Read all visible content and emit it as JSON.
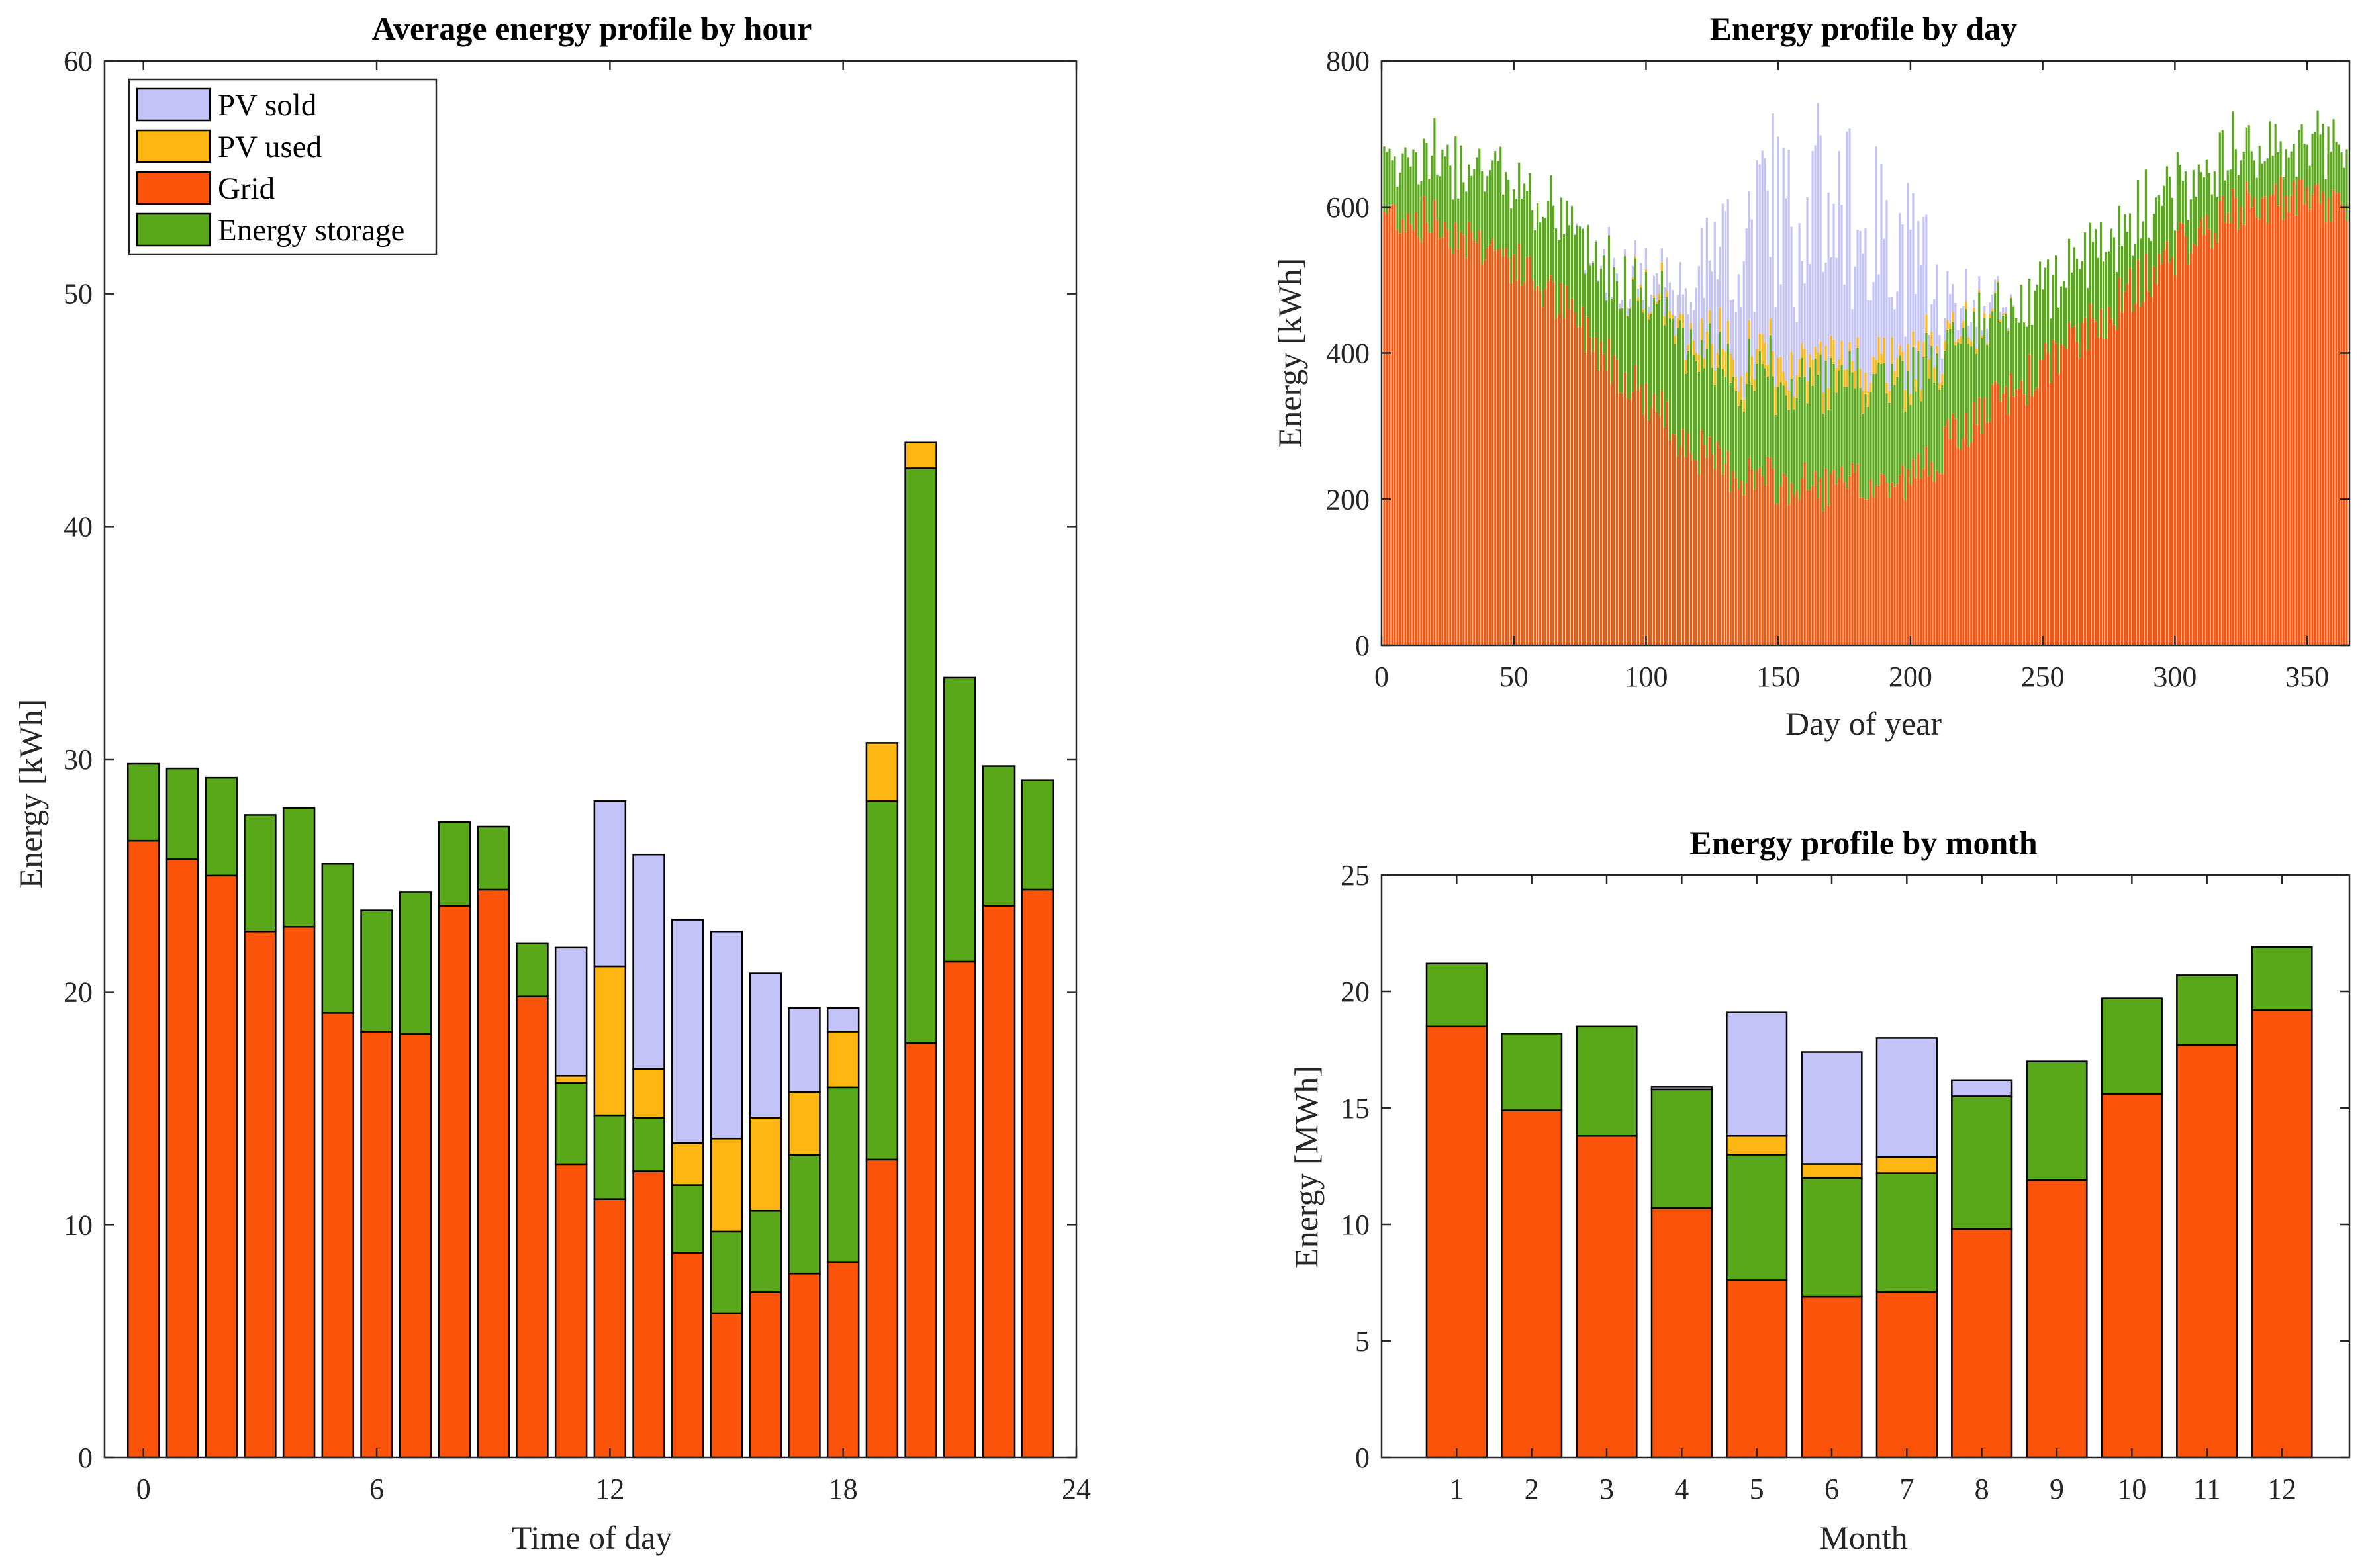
{
  "colors": {
    "pv_sold": "#C4C3F7",
    "pv_used": "#FDB612",
    "grid": "#FC530A",
    "storage": "#59A819"
  },
  "legend": [
    "PV sold",
    "PV used",
    "Grid",
    "Energy storage"
  ],
  "chart_data": [
    {
      "type": "bar",
      "stacked": true,
      "title": "Average energy profile by hour",
      "xlabel": "Time of day",
      "ylabel": "Energy [kWh]",
      "xlim": [
        -1,
        24
      ],
      "ylim": [
        0,
        60
      ],
      "xticks": [
        "0",
        "6",
        "12",
        "18",
        "24"
      ],
      "yticks": [
        "0",
        "10",
        "20",
        "30",
        "40",
        "50",
        "60"
      ],
      "legend_position": "top-left",
      "x": [
        0,
        1,
        2,
        3,
        4,
        5,
        6,
        7,
        8,
        9,
        10,
        11,
        12,
        13,
        14,
        15,
        16,
        17,
        18,
        19,
        20,
        21,
        22,
        23
      ],
      "series": [
        {
          "name": "Grid",
          "values": [
            26.5,
            25.7,
            25.0,
            22.6,
            22.8,
            19.1,
            18.3,
            18.2,
            23.7,
            24.4,
            19.8,
            12.6,
            11.1,
            12.3,
            8.8,
            6.2,
            7.1,
            7.9,
            8.4,
            12.8,
            17.8,
            21.3,
            23.7,
            24.4
          ]
        },
        {
          "name": "Energy storage",
          "values": [
            3.3,
            3.9,
            4.2,
            5.0,
            5.1,
            6.4,
            5.2,
            6.1,
            3.6,
            2.7,
            2.3,
            3.5,
            3.6,
            2.3,
            2.9,
            3.5,
            3.5,
            5.1,
            7.5,
            15.4,
            24.7,
            12.2,
            6.0,
            4.7
          ]
        },
        {
          "name": "PV used",
          "values": [
            0,
            0,
            0,
            0,
            0,
            0,
            0,
            0,
            0,
            0,
            0,
            0.3,
            6.4,
            2.1,
            1.8,
            4.0,
            4.0,
            2.7,
            2.4,
            2.5,
            1.1,
            0,
            0,
            0
          ]
        },
        {
          "name": "PV sold",
          "values": [
            0,
            0,
            0,
            0,
            0,
            0,
            0,
            0,
            0,
            0,
            0,
            5.5,
            7.1,
            9.2,
            9.6,
            8.9,
            6.2,
            3.6,
            1.0,
            0,
            0,
            0,
            0,
            0
          ]
        }
      ]
    },
    {
      "type": "bar",
      "stacked": true,
      "title": "Energy profile by day",
      "xlabel": "Day of year",
      "ylabel": "Energy [kWh]",
      "xlim": [
        0,
        366
      ],
      "ylim": [
        0,
        800
      ],
      "xticks": [
        "0",
        "50",
        "100",
        "150",
        "200",
        "250",
        "300",
        "350"
      ],
      "yticks": [
        "0",
        "200",
        "400",
        "600",
        "800"
      ],
      "profile_days": [
        1,
        20,
        45,
        70,
        90,
        110,
        125,
        150,
        175,
        200,
        215,
        240,
        270,
        300,
        330,
        365
      ],
      "grid_profile": [
        595,
        580,
        540,
        460,
        380,
        300,
        250,
        220,
        215,
        225,
        280,
        350,
        440,
        540,
        610,
        600
      ],
      "storage_profile": [
        85,
        90,
        110,
        110,
        130,
        150,
        130,
        140,
        145,
        135,
        130,
        120,
        100,
        90,
        75,
        80
      ],
      "pv_used_profile": [
        0,
        0,
        0,
        0,
        0,
        10,
        25,
        30,
        25,
        25,
        10,
        0,
        0,
        0,
        0,
        0
      ],
      "pv_sold_profile": [
        0,
        0,
        0,
        0,
        10,
        40,
        140,
        240,
        230,
        160,
        40,
        0,
        0,
        0,
        0,
        0
      ]
    },
    {
      "type": "bar",
      "stacked": true,
      "title": "Energy profile by month",
      "xlabel": "Month",
      "ylabel": "Energy [MWh]",
      "xlim": [
        0,
        12.9
      ],
      "ylim": [
        0,
        25
      ],
      "categories": [
        "1",
        "2",
        "3",
        "4",
        "5",
        "6",
        "7",
        "8",
        "9",
        "10",
        "11",
        "12"
      ],
      "yticks": [
        "0",
        "5",
        "10",
        "15",
        "20",
        "25"
      ],
      "series": [
        {
          "name": "Grid",
          "values": [
            18.5,
            14.9,
            13.8,
            10.7,
            7.6,
            6.9,
            7.1,
            9.8,
            11.9,
            15.6,
            17.7,
            19.2
          ]
        },
        {
          "name": "Energy storage",
          "values": [
            2.7,
            3.3,
            4.7,
            5.1,
            5.4,
            5.1,
            5.1,
            5.7,
            5.1,
            4.1,
            3.0,
            2.7
          ]
        },
        {
          "name": "PV used",
          "values": [
            0,
            0,
            0,
            0,
            0.8,
            0.6,
            0.7,
            0,
            0,
            0,
            0,
            0
          ]
        },
        {
          "name": "PV sold",
          "values": [
            0,
            0,
            0,
            0.1,
            5.3,
            4.8,
            5.1,
            0.7,
            0,
            0,
            0,
            0
          ]
        }
      ]
    }
  ]
}
